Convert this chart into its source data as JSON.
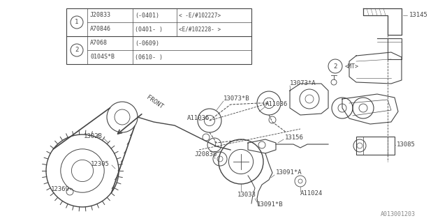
{
  "bg_color": "#ffffff",
  "dc": "#444444",
  "figsize": [
    6.4,
    3.2
  ],
  "dpi": 100,
  "table": {
    "rows": [
      {
        "sym": "1",
        "part": "J20833",
        "range": "(-0401)",
        "note": "< -E/#102227>"
      },
      {
        "sym": "1",
        "part": "A70846",
        "range": "(0401- )",
        "note": "<E/#102228- >"
      },
      {
        "sym": "2",
        "part": "A7068",
        "range": "(-0609)",
        "note": ""
      },
      {
        "sym": "2",
        "part": "0104S*B",
        "range": "(0610- )",
        "note": ""
      }
    ]
  },
  "watermark": "A013001203"
}
